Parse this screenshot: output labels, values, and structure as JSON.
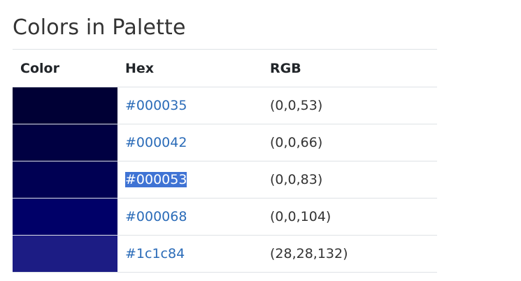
{
  "page": {
    "title": "Colors in Palette"
  },
  "table": {
    "headers": {
      "color": "Color",
      "hex": "Hex",
      "rgb": "RGB"
    },
    "rows": [
      {
        "swatch_color": "#000035",
        "hex": "#000035",
        "rgb": "(0,0,53)"
      },
      {
        "swatch_color": "#000042",
        "hex": "#000042",
        "rgb": "(0,0,66)"
      },
      {
        "swatch_color": "#000053",
        "hex": "#000053",
        "rgb": "(0,0,83)",
        "selected": true
      },
      {
        "swatch_color": "#000068",
        "hex": "#000068",
        "rgb": "(0,0,104)"
      },
      {
        "swatch_color": "#1c1c84",
        "hex": "#1c1c84",
        "rgb": "(28,28,132)"
      }
    ]
  },
  "colors": {
    "link": "#2a6bb8",
    "selection_bg": "#3f73d4",
    "border": "#dee2e6"
  }
}
